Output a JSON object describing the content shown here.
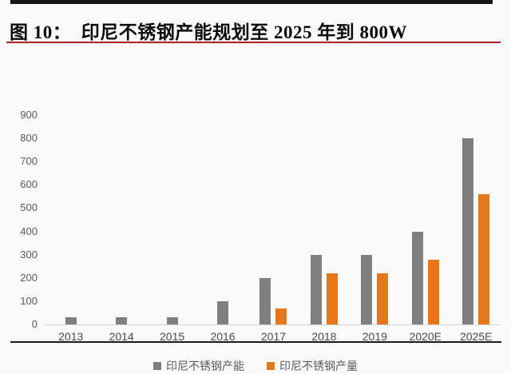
{
  "page": {
    "title": "图 10：  印尼不锈钢产能规划至 2025 年到 800W"
  },
  "colors": {
    "capacity_bar": "#7F7F7F",
    "output_bar": "#E8761A",
    "title_rule": "#B02025",
    "top_bar": "#151515",
    "bottom_rule": "#1A1A1A",
    "axis_line": "#D6D6D6",
    "y_tick_text": "#595963",
    "x_tick_text": "#494951",
    "legend_text": "#5A5A62"
  },
  "chart_data": {
    "type": "bar",
    "title": "印尼不锈钢产能规划至 2025 年到 800W",
    "categories": [
      "2013",
      "2014",
      "2015",
      "2016",
      "2017",
      "2018",
      "2019",
      "2020E",
      "2025E"
    ],
    "series": [
      {
        "name": "印尼不锈钢产能",
        "color": "#7F7F7F",
        "values": [
          30,
          30,
          30,
          100,
          200,
          300,
          300,
          400,
          800
        ]
      },
      {
        "name": "印尼不锈钢产量",
        "color": "#E8761A",
        "values": [
          0,
          0,
          0,
          0,
          70,
          220,
          220,
          280,
          560
        ]
      }
    ],
    "xlabel": "",
    "ylabel": "",
    "ylim": [
      0,
      900
    ],
    "yticks": [
      0,
      100,
      200,
      300,
      400,
      500,
      600,
      700,
      800,
      900
    ],
    "grid": false,
    "legend_position": "bottom"
  }
}
